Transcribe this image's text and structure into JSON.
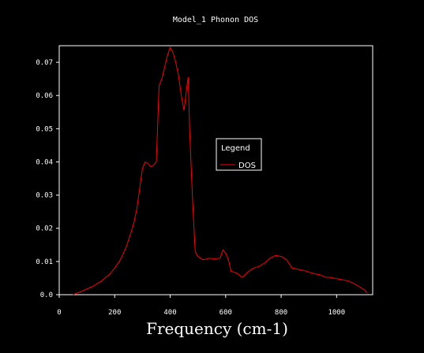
{
  "chart_data": {
    "type": "line",
    "title": "Model_1 Phonon DOS",
    "xlabel": "Frequency (cm-1)",
    "ylabel": "",
    "xlim": [
      0,
      1130
    ],
    "ylim": [
      0,
      0.075
    ],
    "xticks": [
      "0",
      "200",
      "400",
      "600",
      "800",
      "1000"
    ],
    "xtick_values": [
      0,
      200,
      400,
      600,
      800,
      1000
    ],
    "yticks": [
      "0.0",
      "0.01",
      "0.02",
      "0.03",
      "0.04",
      "0.05",
      "0.06",
      "0.07"
    ],
    "ytick_values": [
      0,
      0.01,
      0.02,
      0.03,
      0.04,
      0.05,
      0.06,
      0.07
    ],
    "grid": false,
    "legend": {
      "title": "Legend",
      "placement": "center-right"
    },
    "series": [
      {
        "name": "DOS",
        "color": "#ff0000",
        "x": [
          50,
          80,
          120,
          150,
          180,
          200,
          220,
          240,
          260,
          270,
          280,
          290,
          300,
          310,
          320,
          330,
          340,
          350,
          360,
          370,
          380,
          390,
          400,
          410,
          420,
          430,
          440,
          450,
          460,
          465,
          470,
          480,
          490,
          500,
          510,
          520,
          540,
          560,
          580,
          590,
          600,
          610,
          620,
          630,
          640,
          660,
          680,
          700,
          720,
          740,
          760,
          780,
          800,
          820,
          840,
          860,
          880,
          900,
          920,
          940,
          960,
          980,
          1000,
          1020,
          1040,
          1060,
          1080,
          1100,
          1110
        ],
        "y": [
          0.0,
          0.001,
          0.0025,
          0.004,
          0.006,
          0.008,
          0.0105,
          0.014,
          0.019,
          0.022,
          0.026,
          0.032,
          0.038,
          0.04,
          0.0395,
          0.0385,
          0.039,
          0.04,
          0.063,
          0.065,
          0.0685,
          0.072,
          0.0745,
          0.073,
          0.07,
          0.066,
          0.06,
          0.0555,
          0.0625,
          0.0655,
          0.05,
          0.03,
          0.013,
          0.0115,
          0.011,
          0.0105,
          0.011,
          0.0108,
          0.011,
          0.0135,
          0.0125,
          0.0105,
          0.007,
          0.0068,
          0.0065,
          0.0052,
          0.0068,
          0.008,
          0.0085,
          0.0095,
          0.011,
          0.0118,
          0.0115,
          0.0105,
          0.008,
          0.0077,
          0.0073,
          0.0068,
          0.0063,
          0.006,
          0.0053,
          0.0052,
          0.0048,
          0.0045,
          0.0042,
          0.0035,
          0.0025,
          0.0015,
          0.0005
        ]
      }
    ]
  }
}
